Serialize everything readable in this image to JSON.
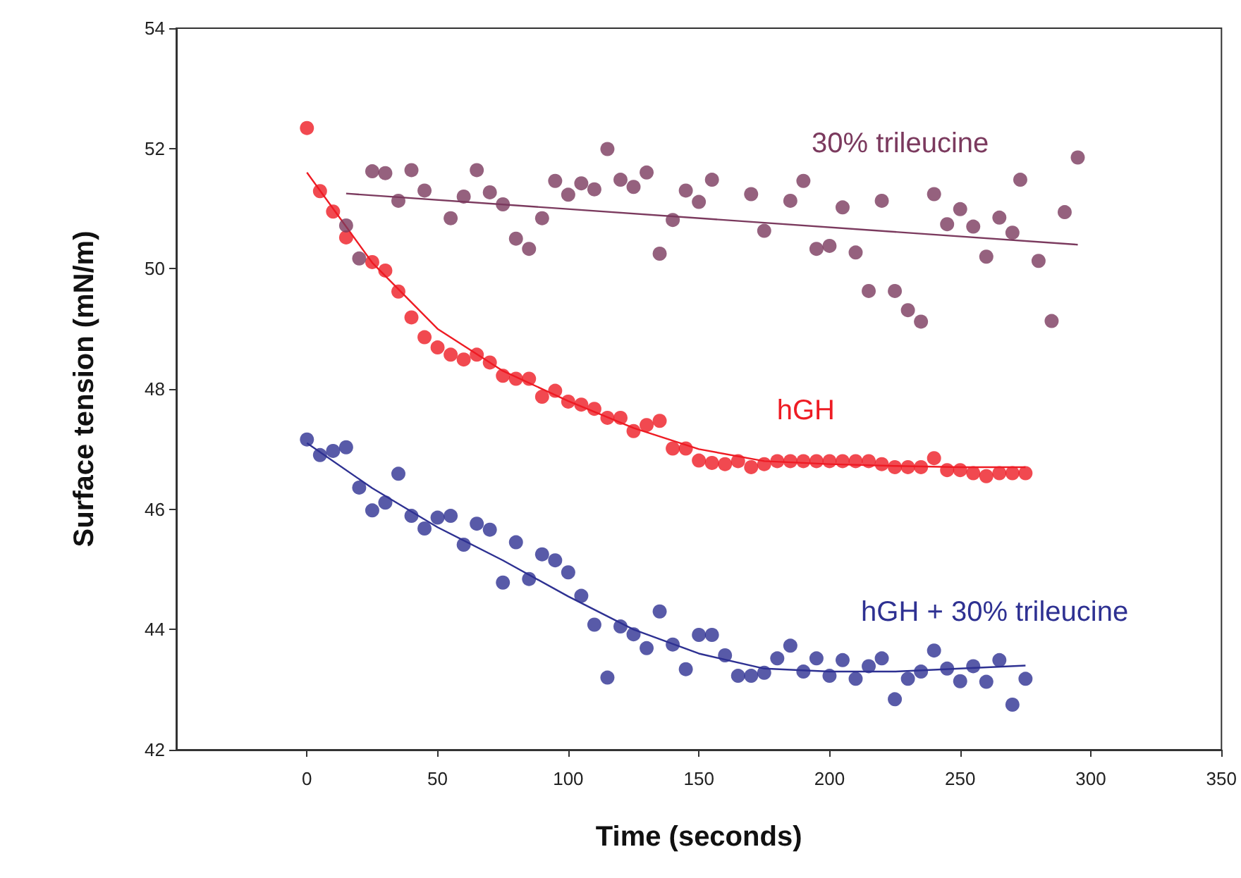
{
  "chart_data": {
    "type": "scatter",
    "xlabel": "Time (seconds)",
    "ylabel": "Surface tension (mN/m)",
    "xlim": [
      -50,
      350
    ],
    "xticks": [
      0,
      50,
      100,
      150,
      200,
      250,
      300,
      350
    ],
    "ylim": [
      42,
      54
    ],
    "yticks": [
      42,
      44,
      46,
      48,
      50,
      52,
      54
    ],
    "grid": false,
    "marker": "circle",
    "series": [
      {
        "name": "30% trileucine",
        "color": "#7b3a5e",
        "x": [
          15,
          20,
          25,
          30,
          35,
          40,
          45,
          55,
          60,
          65,
          70,
          75,
          80,
          85,
          90,
          95,
          100,
          105,
          110,
          115,
          120,
          125,
          130,
          135,
          140,
          145,
          150,
          155,
          170,
          175,
          185,
          190,
          195,
          200,
          205,
          210,
          215,
          220,
          225,
          230,
          235,
          240,
          245,
          250,
          255,
          260,
          265,
          270,
          273,
          280,
          285,
          290,
          295
        ],
        "values": [
          50.72,
          50.17,
          51.62,
          51.59,
          51.13,
          51.64,
          51.3,
          50.84,
          51.2,
          51.64,
          51.27,
          51.07,
          50.5,
          50.33,
          50.84,
          51.46,
          51.23,
          51.42,
          51.32,
          51.99,
          51.48,
          51.36,
          51.6,
          50.25,
          50.81,
          51.3,
          51.11,
          51.48,
          51.24,
          50.63,
          51.13,
          51.46,
          50.33,
          50.38,
          51.02,
          50.27,
          49.63,
          51.13,
          49.63,
          49.31,
          49.12,
          51.24,
          50.74,
          50.99,
          50.7,
          50.2,
          50.85,
          50.6,
          51.48,
          50.13,
          49.13,
          50.94,
          51.85
        ]
      },
      {
        "type": "line",
        "marker": "none",
        "color": "#7b3a5e",
        "x": [
          15,
          295
        ],
        "values": [
          51.25,
          50.4
        ]
      },
      {
        "name": "hGH",
        "color": "#ee1c24",
        "x": [
          0,
          5,
          10,
          15,
          20,
          25,
          30,
          35,
          40,
          45,
          50,
          55,
          60,
          65,
          70,
          75,
          80,
          85,
          90,
          95,
          100,
          105,
          110,
          115,
          120,
          125,
          130,
          135,
          140,
          145,
          150,
          155,
          160,
          165,
          170,
          175,
          180,
          185,
          190,
          195,
          200,
          205,
          210,
          215,
          220,
          225,
          230,
          235,
          240,
          245,
          250,
          255,
          260,
          265,
          270,
          275
        ],
        "values": [
          52.34,
          51.29,
          50.95,
          50.52,
          null,
          50.11,
          49.97,
          49.62,
          49.19,
          48.86,
          48.69,
          48.57,
          48.49,
          48.57,
          48.44,
          48.22,
          48.17,
          48.17,
          47.87,
          47.97,
          47.79,
          47.74,
          47.67,
          47.52,
          47.52,
          47.3,
          47.4,
          47.47,
          47.01,
          47.01,
          46.81,
          46.77,
          46.75,
          46.8,
          46.7,
          46.75,
          46.8,
          46.8,
          46.8,
          46.8,
          46.8,
          46.8,
          46.8,
          46.8,
          46.75,
          46.7,
          46.7,
          46.7,
          46.85,
          46.65,
          46.65,
          46.6,
          46.55,
          46.6,
          46.6,
          46.6
        ]
      },
      {
        "type": "line",
        "marker": "none",
        "color": "#ee1c24",
        "x": [
          0,
          25,
          50,
          75,
          100,
          125,
          150,
          175,
          200,
          225,
          250,
          275
        ],
        "values": [
          51.6,
          50.1,
          49.0,
          48.3,
          47.8,
          47.35,
          47.0,
          46.8,
          46.75,
          46.72,
          46.7,
          46.7
        ]
      },
      {
        "name": "hGH + 30% trileucine",
        "color": "#2e3192",
        "x": [
          0,
          5,
          10,
          15,
          20,
          25,
          30,
          35,
          40,
          45,
          50,
          55,
          60,
          65,
          70,
          75,
          80,
          85,
          90,
          95,
          100,
          105,
          110,
          115,
          120,
          125,
          130,
          135,
          140,
          145,
          150,
          155,
          160,
          165,
          170,
          175,
          180,
          185,
          190,
          195,
          200,
          205,
          210,
          215,
          220,
          225,
          230,
          235,
          240,
          245,
          250,
          255,
          260,
          265,
          270,
          275
        ],
        "values": [
          47.16,
          46.9,
          46.97,
          47.03,
          46.36,
          45.98,
          46.11,
          46.59,
          45.89,
          45.68,
          45.86,
          45.89,
          45.41,
          45.76,
          45.66,
          44.78,
          45.45,
          44.84,
          45.25,
          45.15,
          44.95,
          44.56,
          44.08,
          43.2,
          44.05,
          43.92,
          43.69,
          44.3,
          43.75,
          43.34,
          43.91,
          43.91,
          43.57,
          43.23,
          43.23,
          43.28,
          43.52,
          43.73,
          43.3,
          43.52,
          43.23,
          43.49,
          43.18,
          43.39,
          43.52,
          42.84,
          43.18,
          43.3,
          43.65,
          43.35,
          43.14,
          43.39,
          43.13,
          43.49,
          42.75,
          43.18
        ]
      },
      {
        "type": "line",
        "marker": "none",
        "color": "#2e3192",
        "x": [
          0,
          25,
          50,
          75,
          100,
          125,
          150,
          175,
          200,
          225,
          250,
          275
        ],
        "values": [
          47.1,
          46.35,
          45.7,
          45.15,
          44.55,
          44.0,
          43.6,
          43.35,
          43.3,
          43.3,
          43.35,
          43.4
        ]
      }
    ]
  }
}
